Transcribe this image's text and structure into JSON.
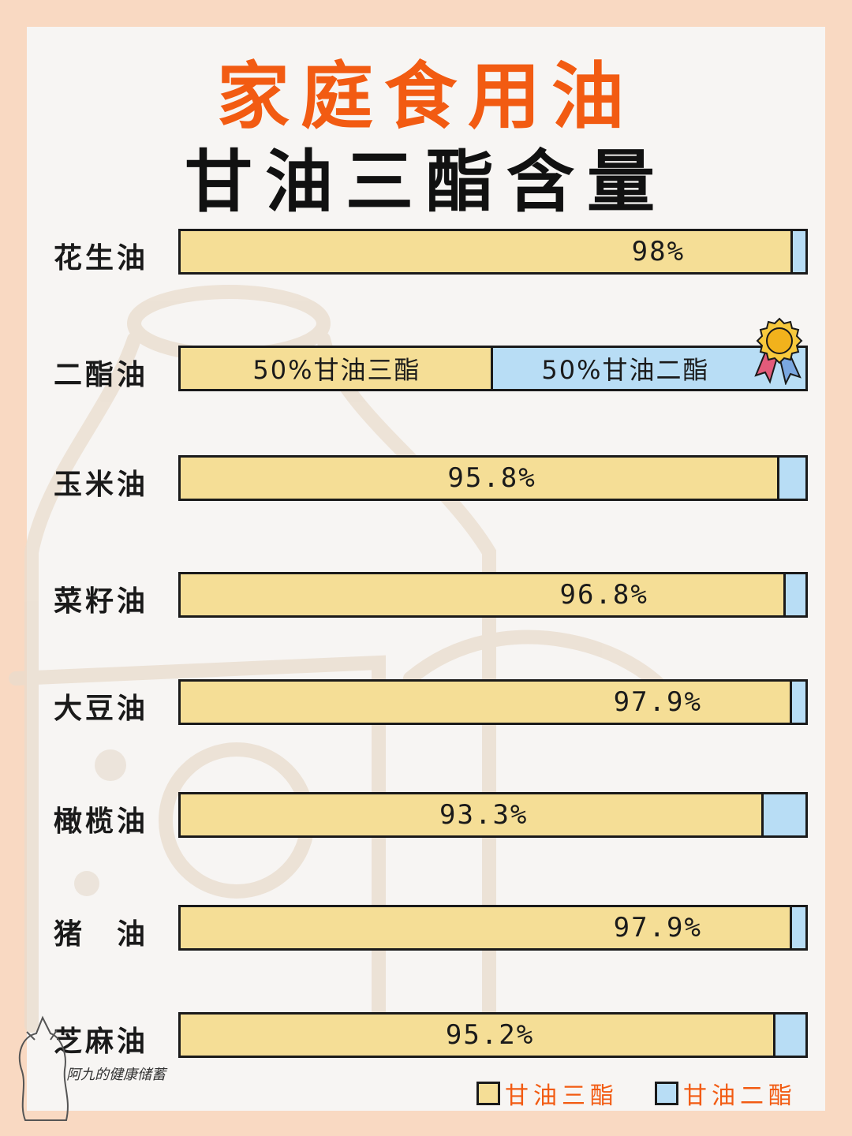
{
  "title": "家庭食用油",
  "subtitle": "甘油三酯含量",
  "colors": {
    "triglyceride": "#f5de96",
    "diglyceride": "#b8ddf5",
    "title_accent": "#f25b12",
    "background": "#f9d9c2"
  },
  "chart_data": {
    "type": "bar",
    "orientation": "horizontal",
    "stacked": true,
    "normalized": true,
    "categories": [
      "花生油",
      "二酯油",
      "玉米油",
      "菜籽油",
      "大豆油",
      "橄榄油",
      "猪　油",
      "芝麻油"
    ],
    "series": [
      {
        "name": "甘油三酯",
        "values": [
          98,
          50,
          95.8,
          96.8,
          97.9,
          93.3,
          97.9,
          95.2
        ]
      },
      {
        "name": "甘油二酯",
        "values": [
          2,
          50,
          4.2,
          3.2,
          2.1,
          6.7,
          2.1,
          4.8
        ]
      }
    ],
    "data_labels": [
      "98%",
      "50%甘油三酯",
      "95.8%",
      "96.8%",
      "97.9%",
      "93.3%",
      "97.9%",
      "95.2%"
    ],
    "split_label_secondary": "50%甘油二酯",
    "highlight_icon": "award-ribbon-icon",
    "highlight_category": "二酯油",
    "xlim": [
      0,
      100
    ],
    "legend_position": "bottom-right"
  },
  "legend": [
    {
      "label": "甘油三酯"
    },
    {
      "label": "甘油二酯"
    }
  ],
  "signature": "阿九的健康储蓄"
}
